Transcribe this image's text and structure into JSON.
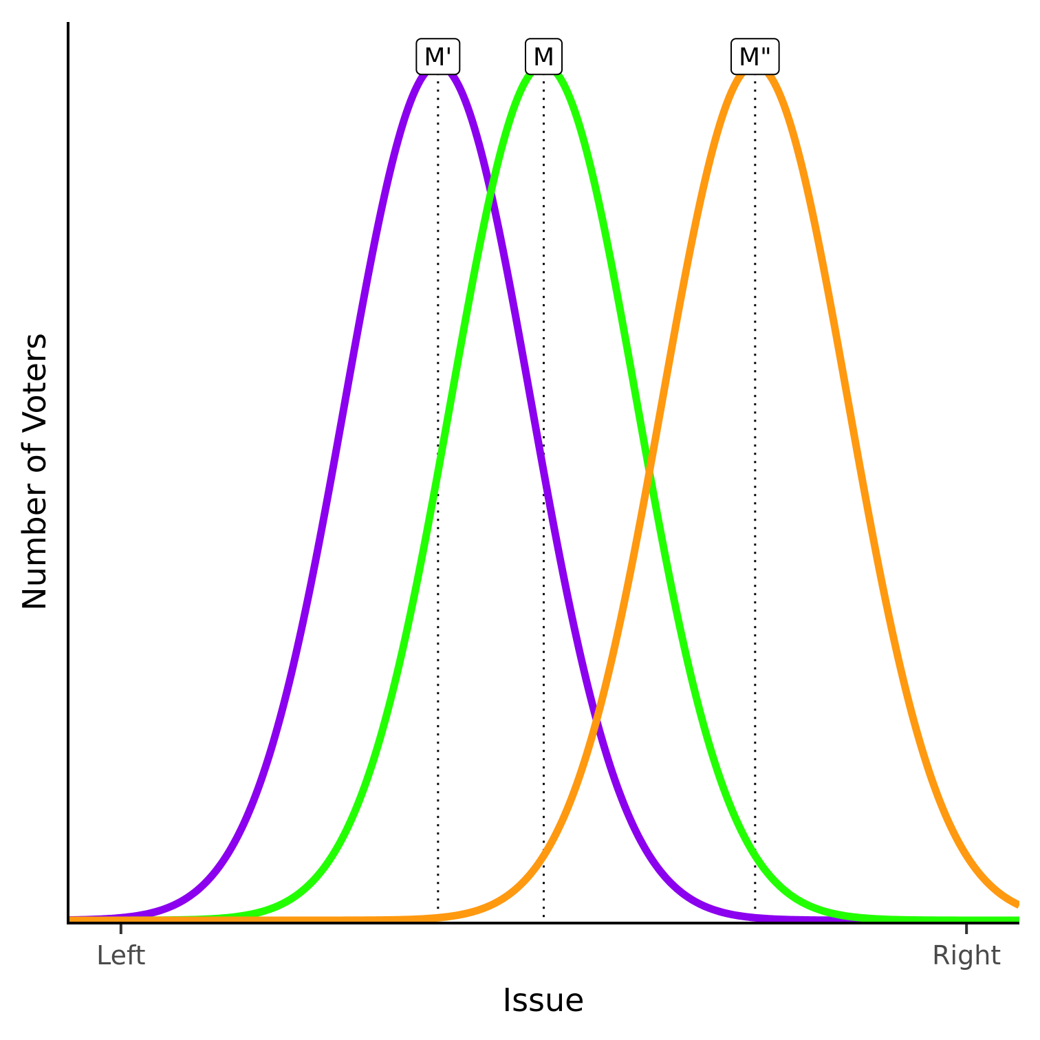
{
  "chart_data": {
    "type": "line",
    "title": "",
    "xlabel": "Issue",
    "ylabel": "Number of Voters",
    "xlim": [
      -0.625,
      10.625
    ],
    "ylim": [
      0,
      1.05
    ],
    "x_ticks": [
      {
        "value": 0,
        "label": "Left"
      },
      {
        "value": 10,
        "label": "Right"
      }
    ],
    "grid": false,
    "legend": "none",
    "series": [
      {
        "color": "#8B00EE",
        "mean": 3.75,
        "sd": 1.1
      },
      {
        "color": "#22FF00",
        "mean": 5.0,
        "sd": 1.1
      },
      {
        "color": "#FF9910",
        "mean": 7.5,
        "sd": 1.1
      }
    ],
    "medians": [
      {
        "label": "M'",
        "x": 3.75
      },
      {
        "label": "M",
        "x": 5.0
      },
      {
        "label": "M\"",
        "x": 7.5
      }
    ]
  }
}
